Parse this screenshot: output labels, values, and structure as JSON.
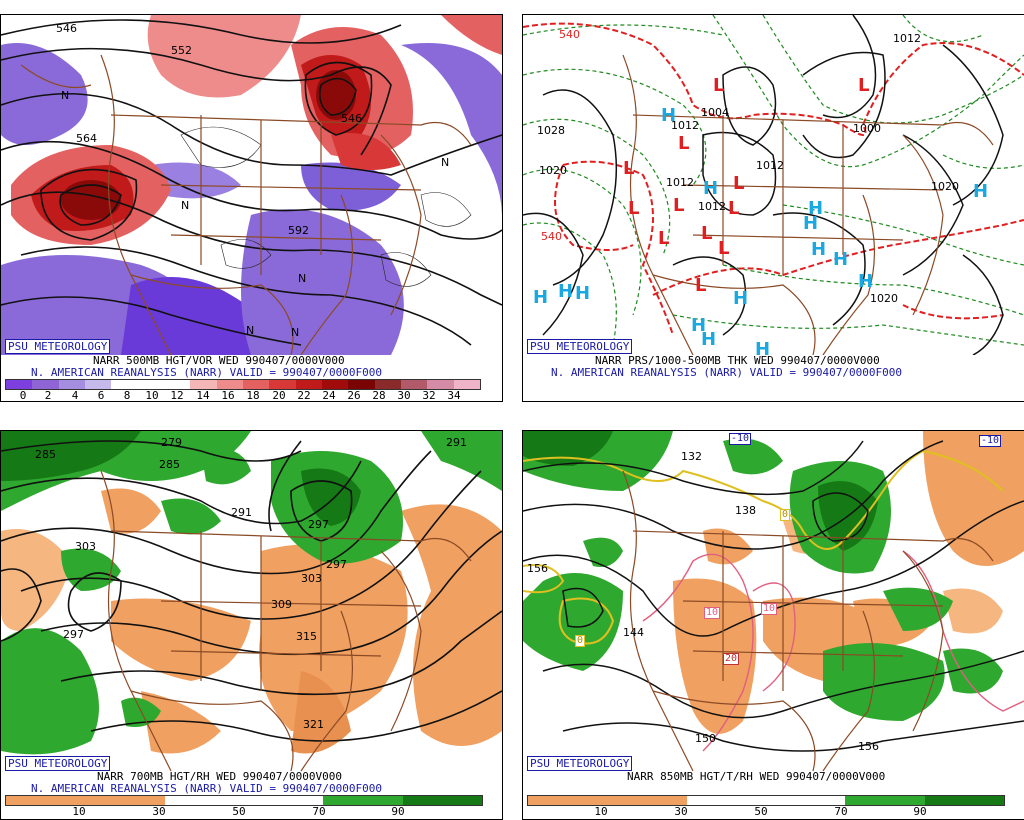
{
  "panels": [
    {
      "badge": "PSU METEOROLOGY",
      "caption1": "NARR 500MB HGT/VOR WED 990407/0000V000",
      "caption2": "N. AMERICAN REANALYSIS (NARR) VALID = 990407/0000F000",
      "scale_ticks": [
        "0",
        "2",
        "4",
        "6",
        "8",
        "10",
        "12",
        "14",
        "16",
        "18",
        "20",
        "22",
        "24",
        "26",
        "28",
        "30",
        "32",
        "34"
      ],
      "scale_colors": [
        "#7d3fe0",
        "#8f65d6",
        "#a58ee0",
        "#c6b9ec",
        "#ffffff",
        "#ffffff",
        "#ffffff",
        "#f4b6b6",
        "#ee8c8c",
        "#e46161",
        "#d83838",
        "#c11a1a",
        "#a10b0b",
        "#7a0404",
        "#8a2a2a",
        "#b35a6a",
        "#d48ca6",
        "#f0b4c8"
      ],
      "labels": [
        "546",
        "552",
        "546",
        "592",
        "564"
      ]
    },
    {
      "badge": "PSU METEOROLOGY",
      "caption1": "NARR PRS/1000-500MB THK WED 990407/0000V000",
      "caption2": "N. AMERICAN REANALYSIS (NARR) VALID = 990407/0000F000",
      "labels": [
        "1028",
        "1020",
        "1012",
        "1004",
        "1012",
        "1012",
        "1012",
        "1020",
        "1012",
        "1020",
        "540",
        "540",
        "1000"
      ]
    },
    {
      "badge": "PSU METEOROLOGY",
      "caption1": "NARR 700MB HGT/RH WED 990407/0000V000",
      "caption2": "N. AMERICAN REANALYSIS (NARR) VALID = 990407/0000F000",
      "scale_ticks": [
        "10",
        "30",
        "50",
        "70",
        "90"
      ],
      "labels": [
        "279",
        "285",
        "291",
        "297",
        "303",
        "309",
        "315",
        "321",
        "303",
        "291",
        "297",
        "285",
        "297"
      ]
    },
    {
      "badge": "PSU METEOROLOGY",
      "caption1": "NARR 850MB HGT/T/RH WED 990407/0000V000",
      "scale_ticks": [
        "10",
        "30",
        "50",
        "70",
        "90"
      ],
      "labels": [
        "132",
        "138",
        "144",
        "150",
        "156",
        "156",
        "-10",
        "-10",
        "10",
        "10",
        "20",
        "0",
        "0"
      ]
    }
  ],
  "map_symbols": {
    "low": "L",
    "high": "H",
    "northern_center": "N"
  },
  "colors": {
    "vorticity_neg": "#7d5fd8",
    "vorticity_pos": "#d83838",
    "rh_dry": "#f0a060",
    "rh_moist": "#2ea82e",
    "rh_very_moist": "#157a15",
    "low_color": "#e02020",
    "high_color": "#19a9e0",
    "state_lines": "#8b4a26",
    "label_blue": "#1a1aa8"
  }
}
